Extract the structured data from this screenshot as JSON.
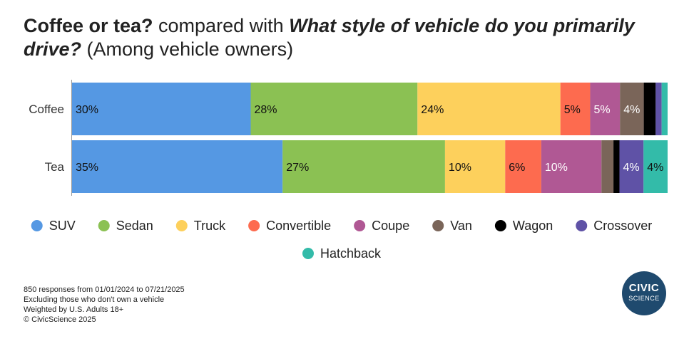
{
  "title": {
    "part1": "Coffee or tea?",
    "part2": " compared with ",
    "part3": "What style of vehicle do you primarily drive?",
    "part4": " (Among vehicle owners)"
  },
  "chart_data": {
    "type": "bar",
    "orientation": "horizontal",
    "stacked": true,
    "normalized": true,
    "categories": [
      "Coffee",
      "Tea"
    ],
    "series": [
      {
        "name": "SUV",
        "color": "#5598e3",
        "values": [
          30,
          35
        ],
        "labels": [
          "30%",
          "35%"
        ]
      },
      {
        "name": "Sedan",
        "color": "#8bc153",
        "values": [
          28,
          27
        ],
        "labels": [
          "28%",
          "27%"
        ]
      },
      {
        "name": "Truck",
        "color": "#fdd05c",
        "values": [
          24,
          10
        ],
        "labels": [
          "24%",
          "10%"
        ]
      },
      {
        "name": "Convertible",
        "color": "#fd6b4f",
        "values": [
          5,
          6
        ],
        "labels": [
          "5%",
          "6%"
        ]
      },
      {
        "name": "Coupe",
        "color": "#b05894",
        "values": [
          5,
          10
        ],
        "labels": [
          "5%",
          "10%"
        ]
      },
      {
        "name": "Van",
        "color": "#7a6559",
        "values": [
          4,
          2
        ],
        "labels": [
          "4%",
          ""
        ]
      },
      {
        "name": "Wagon",
        "color": "#000000",
        "values": [
          2,
          1
        ],
        "labels": [
          "",
          ""
        ]
      },
      {
        "name": "Crossover",
        "color": "#5f52a6",
        "values": [
          1,
          4
        ],
        "labels": [
          "",
          "4%"
        ]
      },
      {
        "name": "Hatchback",
        "color": "#33bba9",
        "values": [
          1,
          4
        ],
        "labels": [
          "",
          "4%"
        ]
      }
    ],
    "legend_position": "bottom"
  },
  "footer": {
    "line1": "850 responses from 01/01/2024 to 07/21/2025",
    "line2": "Excluding those who don't own a vehicle",
    "line3": "Weighted by U.S. Adults 18+",
    "line4": "© CivicScience 2025"
  },
  "logo": {
    "line1": "CIVIC",
    "line2": "SCIENCE"
  }
}
